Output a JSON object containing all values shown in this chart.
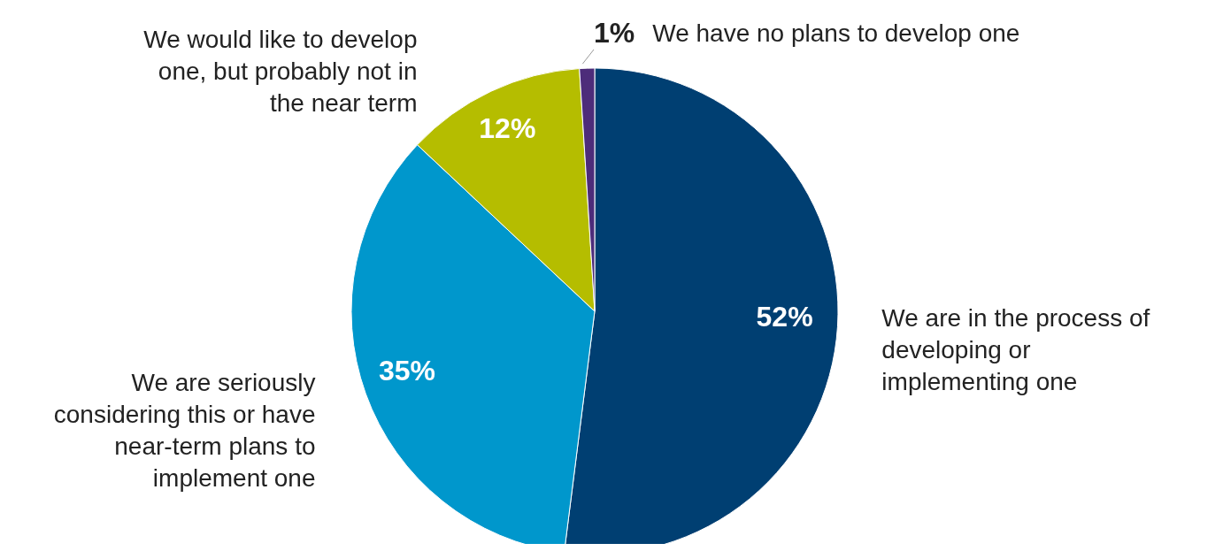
{
  "chart_data": {
    "type": "pie",
    "categories": [
      "We are in the process of developing or implementing one",
      "We are seriously considering this or have near-term plans to implement one",
      "We would like to develop one, but probably not in the near term",
      "We have no plans to develop one"
    ],
    "values": [
      52,
      35,
      12,
      1
    ],
    "colors": [
      "#003f72",
      "#0097cc",
      "#b5bd00",
      "#4d2c7a"
    ],
    "value_labels": [
      "52%",
      "35%",
      "12%",
      "1%"
    ],
    "legend": false
  }
}
